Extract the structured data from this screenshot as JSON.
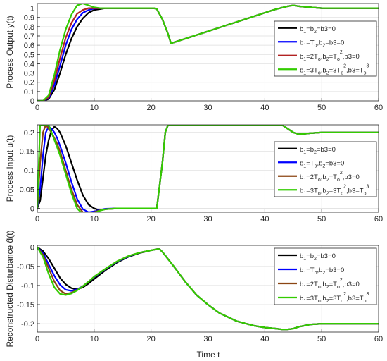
{
  "figure": {
    "x_axis_label": "Time t"
  },
  "legend_labels": [
    {
      "b1": "b",
      "s1": "1",
      "eq1": "=b",
      "s2": "2",
      "rest": "=b3=0"
    },
    {
      "b1": "b",
      "s1": "1",
      "eq1": "=T",
      "s1b": "o",
      "mid": ",b",
      "s2": "2",
      "rest": "=b3=0"
    },
    {
      "b1": "b",
      "s1": "1",
      "eq1": "=2T",
      "s1b": "o",
      "mid": ",b",
      "s2": "2",
      "eq2": "=T",
      "s2b": "o",
      "sup2": "2",
      "rest": ",b3=0"
    },
    {
      "b1": "b",
      "s1": "1",
      "eq1": "=3T",
      "s1b": "o",
      "mid": ",b",
      "s2": "2",
      "eq2": "=3T",
      "s2b": "o",
      "sup2": "2",
      "mid2": ",b3=T",
      "s3b": "o",
      "sup3": "3"
    }
  ],
  "chart_data": [
    {
      "type": "line",
      "ylabel": "Process Output y(t)",
      "xlim": [
        0,
        60
      ],
      "ylim": [
        0,
        1.05
      ],
      "xticks": [
        0,
        10,
        20,
        30,
        40,
        50,
        60
      ],
      "yticks": [
        0,
        0.1,
        0.2,
        0.3,
        0.4,
        0.5,
        0.6,
        0.7,
        0.8,
        0.9,
        1
      ],
      "ytick_labels": [
        "0",
        "0.1",
        "0.2",
        "0.3",
        "0.4",
        "0.5",
        "0.6",
        "0.7",
        "0.8",
        "0.9",
        "1"
      ],
      "grid": true,
      "legend_position": "right",
      "x": [
        0,
        1,
        2,
        3,
        4,
        5,
        6,
        7,
        8,
        9,
        10,
        11,
        12,
        13,
        14,
        15,
        16,
        17,
        18,
        19,
        20,
        20.5,
        21,
        22,
        23,
        23.5,
        24,
        25,
        26,
        28,
        30,
        33,
        36,
        40,
        42,
        44,
        45,
        46,
        48,
        50,
        52,
        55,
        60
      ],
      "series": [
        {
          "color": "#000000",
          "values": [
            0,
            0,
            0.02,
            0.12,
            0.3,
            0.5,
            0.67,
            0.8,
            0.89,
            0.95,
            0.98,
            0.99,
            1,
            1,
            1,
            1,
            1,
            1,
            1,
            1,
            1,
            1,
            0.99,
            0.88,
            0.72,
            0.62,
            0.63,
            0.65,
            0.67,
            0.71,
            0.75,
            0.81,
            0.87,
            0.95,
            0.99,
            1.02,
            1.03,
            1.02,
            1.01,
            1,
            1,
            1,
            1
          ]
        },
        {
          "color": "#0000ff",
          "values": [
            0,
            0,
            0.03,
            0.17,
            0.38,
            0.6,
            0.77,
            0.88,
            0.95,
            0.98,
            0.995,
            1,
            1,
            1,
            1,
            1,
            1,
            1,
            1,
            1,
            1,
            1,
            0.99,
            0.88,
            0.72,
            0.62,
            0.63,
            0.65,
            0.67,
            0.71,
            0.75,
            0.81,
            0.87,
            0.95,
            0.99,
            1.02,
            1.03,
            1.02,
            1.01,
            1,
            1,
            1,
            1
          ]
        },
        {
          "color": "#b22222",
          "values": [
            0,
            0,
            0.04,
            0.22,
            0.46,
            0.68,
            0.84,
            0.94,
            0.98,
            1,
            1,
            1,
            1,
            1,
            1,
            1,
            1,
            1,
            1,
            1,
            1,
            1,
            0.99,
            0.88,
            0.72,
            0.62,
            0.63,
            0.65,
            0.67,
            0.71,
            0.75,
            0.81,
            0.87,
            0.95,
            0.99,
            1.02,
            1.03,
            1.02,
            1.01,
            1,
            1,
            1,
            1
          ]
        },
        {
          "color": "#33cc00",
          "values": [
            0,
            0,
            0.06,
            0.28,
            0.55,
            0.77,
            0.93,
            1.03,
            1.05,
            1.03,
            1.01,
            1,
            1,
            1,
            1,
            1,
            1,
            1,
            1,
            1,
            1,
            1,
            0.99,
            0.88,
            0.72,
            0.62,
            0.63,
            0.65,
            0.67,
            0.71,
            0.75,
            0.81,
            0.87,
            0.95,
            0.99,
            1.02,
            1.03,
            1.02,
            1.01,
            1,
            1,
            1,
            1
          ]
        }
      ]
    },
    {
      "type": "line",
      "ylabel": "Process Input u(t)",
      "xlim": [
        0,
        60
      ],
      "ylim": [
        -0.01,
        0.22
      ],
      "xticks": [
        0,
        10,
        20,
        30,
        40,
        50,
        60
      ],
      "yticks": [
        0,
        0.05,
        0.1,
        0.15,
        0.2
      ],
      "ytick_labels": [
        "0",
        "0.05",
        "0.1",
        "0.15",
        "0.2"
      ],
      "grid": true,
      "legend_position": "right",
      "x": [
        0,
        0.5,
        1,
        1.5,
        2,
        2.5,
        3,
        3.5,
        4,
        5,
        6,
        7,
        8,
        9,
        10,
        11,
        12,
        14,
        16,
        18,
        20,
        20.5,
        21,
        22,
        22.5,
        23,
        30,
        40,
        43,
        44,
        45,
        46,
        48,
        50,
        55,
        60
      ],
      "series": [
        {
          "color": "#000000",
          "values": [
            0,
            0.02,
            0.08,
            0.14,
            0.18,
            0.205,
            0.215,
            0.21,
            0.2,
            0.165,
            0.12,
            0.075,
            0.035,
            0.01,
            0,
            -0.005,
            -0.002,
            0,
            0,
            0,
            0,
            0,
            0,
            0.12,
            0.2,
            0.22,
            0.22,
            0.22,
            0.22,
            0.21,
            0.2,
            0.195,
            0.198,
            0.2,
            0.2,
            0.2
          ]
        },
        {
          "color": "#0000ff",
          "values": [
            0,
            0.05,
            0.14,
            0.2,
            0.215,
            0.21,
            0.2,
            0.185,
            0.165,
            0.12,
            0.07,
            0.025,
            -0.002,
            -0.01,
            -0.008,
            -0.004,
            -0.001,
            0,
            0,
            0,
            0,
            0,
            0,
            0.12,
            0.2,
            0.22,
            0.22,
            0.22,
            0.22,
            0.21,
            0.2,
            0.195,
            0.198,
            0.2,
            0.2,
            0.2
          ]
        },
        {
          "color": "#8b4513",
          "values": [
            0,
            0.12,
            0.2,
            0.22,
            0.21,
            0.2,
            0.185,
            0.17,
            0.15,
            0.1,
            0.05,
            0.01,
            -0.01,
            -0.014,
            -0.01,
            -0.005,
            -0.002,
            0,
            0,
            0,
            0,
            0,
            0,
            0.12,
            0.2,
            0.22,
            0.22,
            0.22,
            0.22,
            0.21,
            0.2,
            0.195,
            0.198,
            0.2,
            0.2,
            0.2
          ]
        },
        {
          "color": "#33cc00",
          "values": [
            0,
            0.22,
            0.22,
            0.22,
            0.22,
            0.2,
            0.18,
            0.16,
            0.14,
            0.09,
            0.04,
            0,
            -0.015,
            -0.017,
            -0.012,
            -0.006,
            -0.002,
            0,
            0,
            0,
            0,
            0,
            0,
            0.12,
            0.2,
            0.22,
            0.22,
            0.22,
            0.22,
            0.21,
            0.2,
            0.195,
            0.198,
            0.2,
            0.2,
            0.2
          ]
        }
      ]
    },
    {
      "type": "line",
      "ylabel": "Reconstructed Disturbance d̂(t)",
      "xlim": [
        0,
        60
      ],
      "ylim": [
        -0.222,
        0.005
      ],
      "xticks": [
        0,
        10,
        20,
        30,
        40,
        50,
        60
      ],
      "yticks": [
        0,
        -0.05,
        -0.1,
        -0.15,
        -0.2
      ],
      "ytick_labels": [
        "0",
        "-0.05",
        "-0.1",
        "-0.15",
        "-0.2"
      ],
      "grid": true,
      "legend_position": "right",
      "x": [
        0,
        1,
        2,
        3,
        4,
        5,
        6,
        7,
        8,
        9,
        10,
        12,
        14,
        16,
        18,
        20,
        21,
        21.5,
        22,
        24,
        26,
        28,
        30,
        32,
        35,
        38,
        40,
        42,
        43,
        44,
        45,
        46,
        48,
        50,
        55,
        60
      ],
      "series": [
        {
          "color": "#000000",
          "values": [
            0,
            -0.01,
            -0.03,
            -0.055,
            -0.08,
            -0.097,
            -0.107,
            -0.11,
            -0.105,
            -0.095,
            -0.083,
            -0.06,
            -0.04,
            -0.025,
            -0.015,
            -0.008,
            -0.005,
            -0.005,
            -0.012,
            -0.05,
            -0.09,
            -0.125,
            -0.15,
            -0.172,
            -0.193,
            -0.205,
            -0.21,
            -0.213,
            -0.215,
            -0.215,
            -0.213,
            -0.208,
            -0.202,
            -0.2,
            -0.2,
            -0.2
          ]
        },
        {
          "color": "#0000ff",
          "values": [
            0,
            -0.015,
            -0.045,
            -0.075,
            -0.098,
            -0.111,
            -0.114,
            -0.11,
            -0.102,
            -0.09,
            -0.078,
            -0.057,
            -0.038,
            -0.024,
            -0.014,
            -0.008,
            -0.005,
            -0.005,
            -0.012,
            -0.05,
            -0.09,
            -0.125,
            -0.15,
            -0.172,
            -0.193,
            -0.205,
            -0.21,
            -0.213,
            -0.215,
            -0.215,
            -0.213,
            -0.208,
            -0.202,
            -0.2,
            -0.2,
            -0.2
          ]
        },
        {
          "color": "#8b4513",
          "values": [
            0,
            -0.02,
            -0.055,
            -0.09,
            -0.113,
            -0.122,
            -0.119,
            -0.112,
            -0.102,
            -0.09,
            -0.077,
            -0.056,
            -0.037,
            -0.023,
            -0.014,
            -0.008,
            -0.005,
            -0.005,
            -0.012,
            -0.05,
            -0.09,
            -0.125,
            -0.15,
            -0.172,
            -0.193,
            -0.205,
            -0.21,
            -0.213,
            -0.215,
            -0.215,
            -0.213,
            -0.208,
            -0.202,
            -0.2,
            -0.2,
            -0.2
          ]
        },
        {
          "color": "#33cc00",
          "values": [
            0,
            -0.025,
            -0.07,
            -0.105,
            -0.122,
            -0.125,
            -0.121,
            -0.113,
            -0.102,
            -0.09,
            -0.077,
            -0.056,
            -0.037,
            -0.023,
            -0.014,
            -0.008,
            -0.005,
            -0.005,
            -0.012,
            -0.05,
            -0.09,
            -0.125,
            -0.15,
            -0.172,
            -0.193,
            -0.205,
            -0.21,
            -0.213,
            -0.215,
            -0.215,
            -0.213,
            -0.208,
            -0.202,
            -0.2,
            -0.2,
            -0.2
          ]
        }
      ]
    }
  ]
}
